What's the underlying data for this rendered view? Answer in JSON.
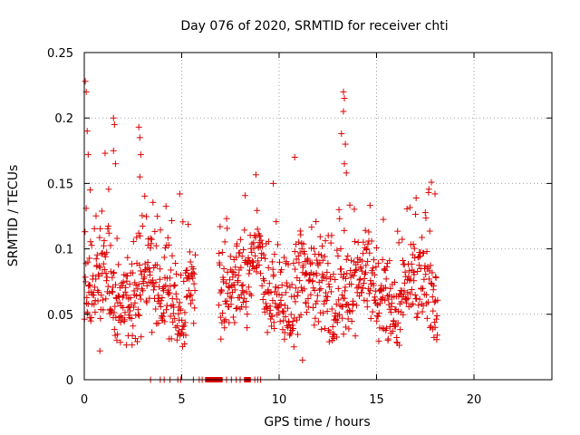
{
  "chart_data": {
    "type": "scatter",
    "title": "Day 076 of 2020, SRMTID for receiver chti",
    "xlabel": "GPS time / hours",
    "ylabel": "SRMTID / TECUs",
    "xlim": [
      0,
      24
    ],
    "ylim": [
      0,
      0.25
    ],
    "xticks": [
      0,
      5,
      10,
      15,
      20
    ],
    "yticks": [
      0,
      0.05,
      0.1,
      0.15,
      0.2,
      0.25
    ],
    "xtick_labels": [
      "0",
      "5",
      "10",
      "15",
      "20"
    ],
    "ytick_labels": [
      "0",
      "0.05",
      "0.1",
      "0.15",
      "0.2",
      "0.25"
    ],
    "grid": true,
    "marker": "+",
    "color": "#dd0000",
    "series": [
      {
        "name": "SRMTID",
        "segments": [
          {
            "start": 0.0,
            "end": 5.7,
            "step": 0.0167,
            "base": 0.068
          },
          {
            "start": 6.9,
            "end": 9.0,
            "step": 0.0167,
            "base": 0.078
          },
          {
            "start": 9.0,
            "end": 18.15,
            "step": 0.0167,
            "base": 0.068
          }
        ],
        "peaks": [
          {
            "x": 0.05,
            "y": 0.228
          },
          {
            "x": 0.1,
            "y": 0.22
          },
          {
            "x": 0.15,
            "y": 0.19
          },
          {
            "x": 0.2,
            "y": 0.172
          },
          {
            "x": 0.3,
            "y": 0.145
          },
          {
            "x": 1.5,
            "y": 0.2
          },
          {
            "x": 1.55,
            "y": 0.195
          },
          {
            "x": 1.5,
            "y": 0.175
          },
          {
            "x": 1.6,
            "y": 0.165
          },
          {
            "x": 2.8,
            "y": 0.193
          },
          {
            "x": 2.85,
            "y": 0.185
          },
          {
            "x": 2.9,
            "y": 0.172
          },
          {
            "x": 2.85,
            "y": 0.155
          },
          {
            "x": 4.9,
            "y": 0.142
          },
          {
            "x": 9.7,
            "y": 0.15
          },
          {
            "x": 10.8,
            "y": 0.17
          },
          {
            "x": 13.3,
            "y": 0.22
          },
          {
            "x": 13.35,
            "y": 0.215
          },
          {
            "x": 13.3,
            "y": 0.205
          },
          {
            "x": 13.2,
            "y": 0.188
          },
          {
            "x": 13.4,
            "y": 0.18
          },
          {
            "x": 13.35,
            "y": 0.165
          },
          {
            "x": 13.45,
            "y": 0.158
          },
          {
            "x": 18.0,
            "y": 0.142
          },
          {
            "x": 11.2,
            "y": 0.015
          },
          {
            "x": 0.8,
            "y": 0.022
          }
        ],
        "zero_values": [
          {
            "x": 3.4
          },
          {
            "x": 3.9
          },
          {
            "x": 4.1
          },
          {
            "x": 4.4
          },
          {
            "x": 4.8
          },
          {
            "x": 4.95
          },
          {
            "x": 5.6
          },
          {
            "x": 5.9
          },
          {
            "x": 6.05
          },
          {
            "start": 6.2,
            "end": 7.1
          },
          {
            "x": 7.3
          },
          {
            "x": 7.55
          },
          {
            "x": 7.8
          },
          {
            "x": 8.0
          },
          {
            "start": 8.2,
            "end": 8.55
          },
          {
            "x": 8.75
          },
          {
            "x": 8.9
          },
          {
            "x": 9.05
          }
        ]
      }
    ]
  }
}
